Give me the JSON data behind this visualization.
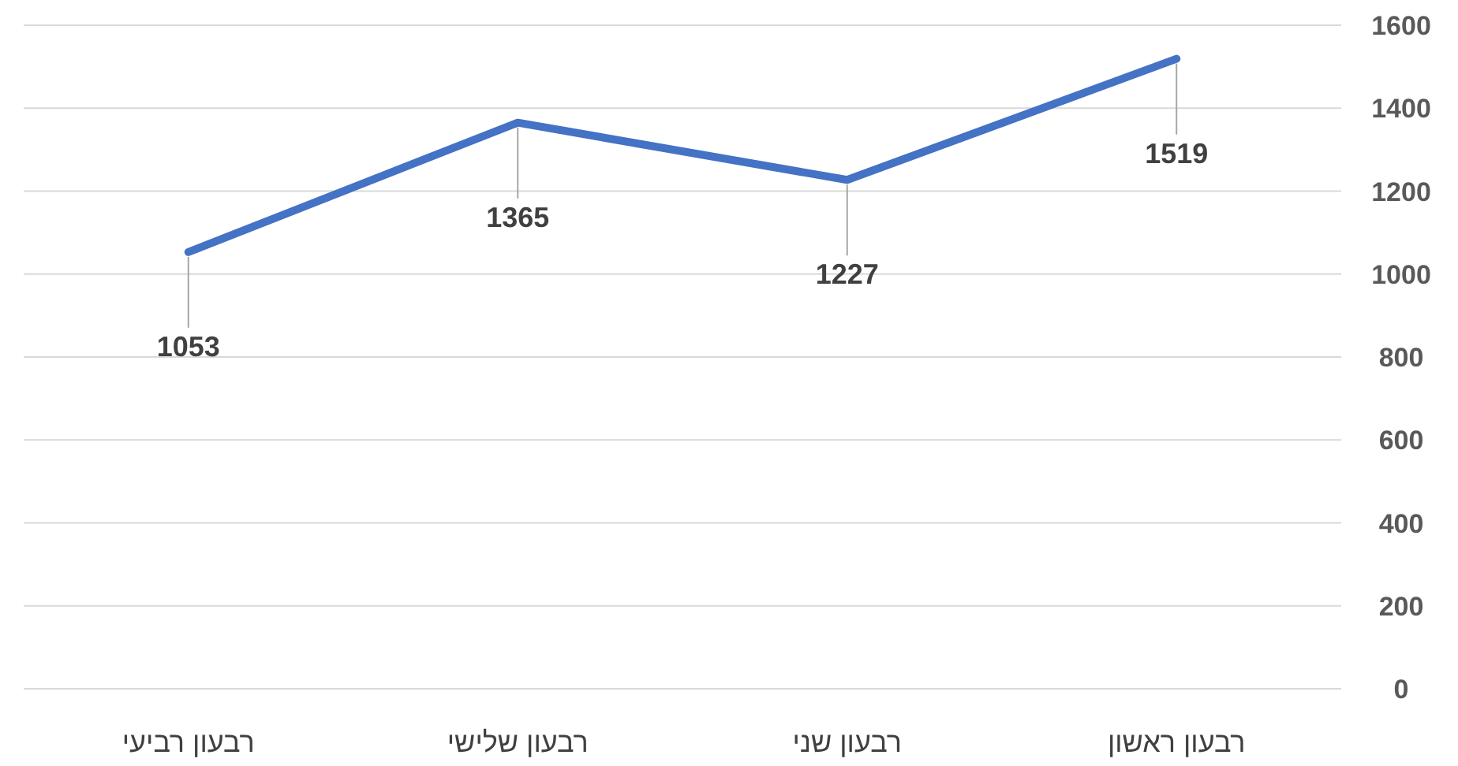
{
  "chart_data": {
    "type": "line",
    "categories": [
      "רבעון רביעי",
      "רבעון שלישי",
      "רבעון שני",
      "רבעון ראשון"
    ],
    "series": [
      {
        "color": "#4472c4",
        "values": [
          1053,
          1365,
          1227,
          1519
        ]
      }
    ],
    "ylim": [
      0,
      1600
    ],
    "yticks": [
      0,
      200,
      400,
      600,
      800,
      1000,
      1200,
      1400,
      1600
    ],
    "grid": "y",
    "data_labels": true,
    "marker": "none",
    "line_style": "solid"
  }
}
